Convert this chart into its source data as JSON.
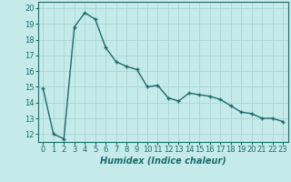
{
  "x": [
    0,
    1,
    2,
    3,
    4,
    5,
    6,
    7,
    8,
    9,
    10,
    11,
    12,
    13,
    14,
    15,
    16,
    17,
    18,
    19,
    20,
    21,
    22,
    23
  ],
  "y": [
    14.9,
    12.0,
    11.7,
    18.8,
    19.7,
    19.3,
    17.5,
    16.6,
    16.3,
    16.1,
    15.0,
    15.1,
    14.3,
    14.1,
    14.6,
    14.5,
    14.4,
    14.2,
    13.8,
    13.4,
    13.3,
    13.0,
    13.0,
    12.8
  ],
  "line_color": "#1a6b6b",
  "marker": "+",
  "marker_size": 3.5,
  "linewidth": 1.0,
  "xlabel": "Humidex (Indice chaleur)",
  "xlabel_fontsize": 7,
  "xlim": [
    -0.5,
    23.5
  ],
  "ylim": [
    11.5,
    20.4
  ],
  "yticks": [
    12,
    13,
    14,
    15,
    16,
    17,
    18,
    19,
    20
  ],
  "xticks": [
    0,
    1,
    2,
    3,
    4,
    5,
    6,
    7,
    8,
    9,
    10,
    11,
    12,
    13,
    14,
    15,
    16,
    17,
    18,
    19,
    20,
    21,
    22,
    23
  ],
  "grid_color": "#a8d5d5",
  "bg_color": "#c5eaea",
  "tick_fontsize": 6,
  "spine_color": "#1a6b6b"
}
